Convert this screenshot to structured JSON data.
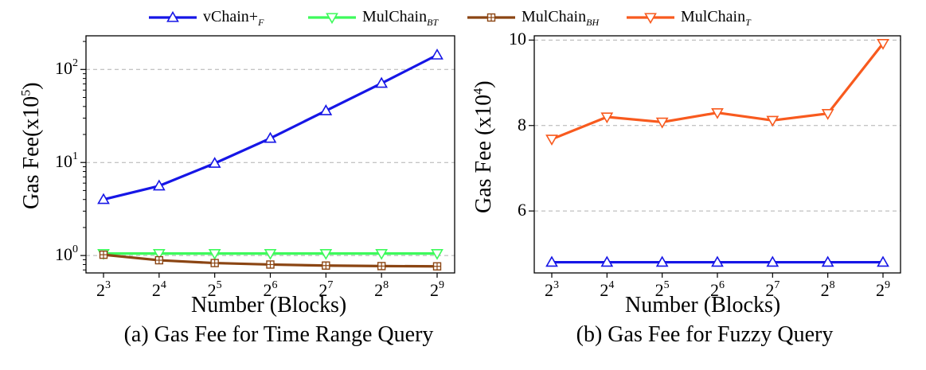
{
  "legend": [
    {
      "base": "vChain+",
      "sub": "F",
      "color": "#1616e6",
      "marker": "triangle-up"
    },
    {
      "base": "MulChain",
      "sub": "BT",
      "color": "#3dfa5b",
      "marker": "triangle-down"
    },
    {
      "base": "MulChain",
      "sub": "BH",
      "color": "#8b4513",
      "marker": "square-plus"
    },
    {
      "base": "MulChain",
      "sub": "T",
      "color": "#f85a1e",
      "marker": "triangle-down"
    }
  ],
  "chart_data": [
    {
      "type": "line",
      "title": "(a) Gas Fee for Time Range Query",
      "xlabel": "Number (Blocks)",
      "ylabel_base": "Gas Fee(x10",
      "ylabel_exp": "5",
      "ylabel_close": ")",
      "yscale": "log",
      "ylim": [
        0.65,
        230
      ],
      "x_ticks": [
        {
          "base": "2",
          "exp": "3"
        },
        {
          "base": "2",
          "exp": "4"
        },
        {
          "base": "2",
          "exp": "5"
        },
        {
          "base": "2",
          "exp": "6"
        },
        {
          "base": "2",
          "exp": "7"
        },
        {
          "base": "2",
          "exp": "8"
        },
        {
          "base": "2",
          "exp": "9"
        }
      ],
      "y_ticks": [
        {
          "value": 1,
          "base": "10",
          "exp": "0"
        },
        {
          "value": 10,
          "base": "10",
          "exp": "1"
        },
        {
          "value": 100,
          "base": "10",
          "exp": "2"
        }
      ],
      "grid": "y-major dashed",
      "series": [
        {
          "name": "vChain+_F",
          "color": "#1616e6",
          "marker": "triangle-up",
          "values": [
            4.0,
            5.6,
            9.8,
            18.2,
            36.0,
            71.0,
            143.0
          ]
        },
        {
          "name": "MulChain_BT",
          "color": "#3dfa5b",
          "marker": "triangle-down",
          "values": [
            1.05,
            1.05,
            1.05,
            1.05,
            1.05,
            1.05,
            1.05
          ]
        },
        {
          "name": "MulChain_BH",
          "color": "#8b4513",
          "marker": "square-plus",
          "values": [
            1.02,
            0.89,
            0.83,
            0.8,
            0.78,
            0.77,
            0.765
          ]
        }
      ]
    },
    {
      "type": "line",
      "title": "(b) Gas Fee for Fuzzy Query",
      "xlabel": "Number (Blocks)",
      "ylabel_base": "Gas Fee (x10",
      "ylabel_exp": "4",
      "ylabel_close": ")",
      "yscale": "linear",
      "ylim": [
        4.55,
        10.1
      ],
      "x_ticks": [
        {
          "base": "2",
          "exp": "3"
        },
        {
          "base": "2",
          "exp": "4"
        },
        {
          "base": "2",
          "exp": "5"
        },
        {
          "base": "2",
          "exp": "6"
        },
        {
          "base": "2",
          "exp": "7"
        },
        {
          "base": "2",
          "exp": "8"
        },
        {
          "base": "2",
          "exp": "9"
        }
      ],
      "y_ticks": [
        {
          "value": 6,
          "label": "6"
        },
        {
          "value": 8,
          "label": "8"
        },
        {
          "value": 10,
          "label": "10"
        }
      ],
      "grid": "y-major dashed",
      "series": [
        {
          "name": "MulChain_T",
          "color": "#f85a1e",
          "marker": "triangle-down",
          "values": [
            7.68,
            8.2,
            8.08,
            8.3,
            8.12,
            8.28,
            9.92
          ]
        },
        {
          "name": "vChain+_F",
          "color": "#1616e6",
          "marker": "triangle-up",
          "values": [
            4.8,
            4.8,
            4.8,
            4.8,
            4.8,
            4.8,
            4.8
          ]
        }
      ]
    }
  ]
}
